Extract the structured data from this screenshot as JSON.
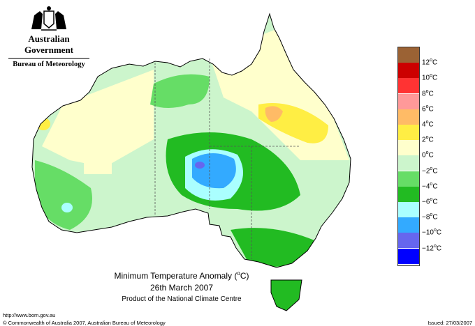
{
  "header": {
    "government": "Australian Government",
    "bureau": "Bureau of Meteorology"
  },
  "map": {
    "title_prefix": "Minimum Temperature Anomaly (",
    "title_unit": "o",
    "title_suffix": "C)",
    "date": "26th March 2007",
    "product": "Product of the National Climate Centre"
  },
  "legend": {
    "items": [
      {
        "label": "12",
        "color": "#9b6234"
      },
      {
        "label": "10",
        "color": "#cc0000"
      },
      {
        "label": "8",
        "color": "#ff3333"
      },
      {
        "label": "6",
        "color": "#ff9999"
      },
      {
        "label": "4",
        "color": "#ffbb66"
      },
      {
        "label": "2",
        "color": "#ffee44"
      },
      {
        "label": "0",
        "color": "#ffffcc"
      },
      {
        "label": "−2",
        "color": "#ccf5cc"
      },
      {
        "label": "−4",
        "color": "#66dd66"
      },
      {
        "label": "−6",
        "color": "#22bb22"
      },
      {
        "label": "−8",
        "color": "#aaffff"
      },
      {
        "label": "−10",
        "color": "#33aaff"
      },
      {
        "label": "−12",
        "color": "#6666ee"
      },
      {
        "label": "",
        "color": "#0000ff"
      }
    ],
    "unit_sup": "o",
    "unit": "C"
  },
  "footer": {
    "url": "http://www.bom.gov.au",
    "copyright": "© Commonwealth of Australia 2007, Australian Bureau of Meteorology",
    "issued": "Issued: 27/03/2007"
  },
  "icons": {
    "crest": "coat-of-arms-icon"
  }
}
